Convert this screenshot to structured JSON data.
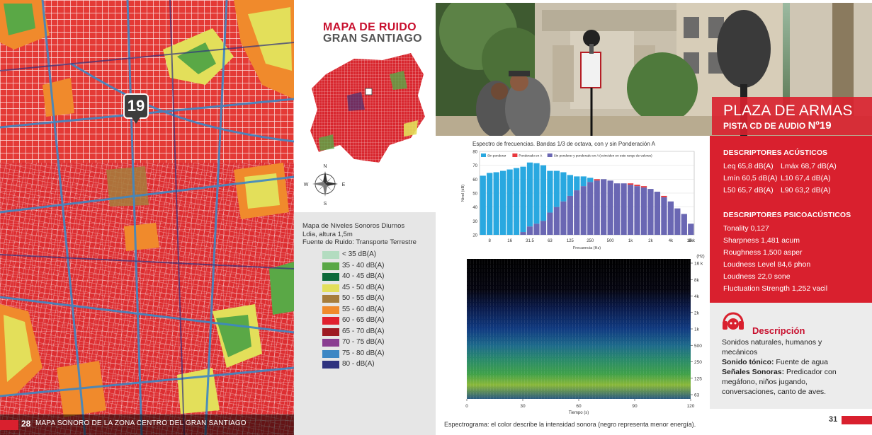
{
  "left_page": {
    "map_marker": "19",
    "page_number": "28",
    "footer_text": "MAPA SONORO DE LA ZONA CENTRO DEL GRAN SANTIAGO",
    "map_title_line1": "MAPA DE RUIDO",
    "map_title_line2": "GRAN SANTIAGO",
    "compass": {
      "n": "N",
      "s": "S",
      "e": "E",
      "w": "W"
    },
    "legend": {
      "title": "Mapa de Niveles Sonoros Diurnos",
      "line2": "Ldia, altura 1,5m",
      "line3": "Fuente de Ruido: Transporte Terrestre",
      "items": [
        {
          "label": "< 35  dB(A)",
          "color": "#b3dcc0"
        },
        {
          "label": "35  -  40  dB(A)",
          "color": "#5aa846"
        },
        {
          "label": "40  -  45  dB(A)",
          "color": "#0c6a3a"
        },
        {
          "label": "45  -  50  dB(A)",
          "color": "#e3df5a"
        },
        {
          "label": "50  -  55  dB(A)",
          "color": "#a67d3c"
        },
        {
          "label": "55  -  60  dB(A)",
          "color": "#f08a2c"
        },
        {
          "label": "60  -  65  dB(A)",
          "color": "#e0202e"
        },
        {
          "label": "65  -  70  dB(A)",
          "color": "#9e1a23"
        },
        {
          "label": "70  -  75  dB(A)",
          "color": "#8a3d91"
        },
        {
          "label": "75  -  80  dB(A)",
          "color": "#3d87c4"
        },
        {
          "label": "80  -        dB(A)",
          "color": "#2f327f"
        }
      ]
    }
  },
  "right_page": {
    "place_title": "PLAZA DE ARMAS",
    "track_label": "PISTA CD DE AUDIO ",
    "track_number": "Nº19",
    "chart_title": "Espectro de frecuencias. Bandas 1/3 de octava, con y sin Ponderación A",
    "descriptors_acoustic": {
      "heading": "DESCRIPTORES ACÚSTICOS",
      "rows": [
        [
          "Leq 65,8 dB(A)",
          "Lmáx 68,7 dB(A)"
        ],
        [
          "Lmín 60,5 dB(A)",
          "L10 67,4 dB(A)"
        ],
        [
          "L50 65,7 dB(A)",
          "L90 63,2 dB(A)"
        ]
      ]
    },
    "descriptors_psycho": {
      "heading": "DESCRIPTORES PSICOACÚSTICOS",
      "items": [
        "Tonality 0,127",
        "Sharpness 1,481 acum",
        "Roughness 1,500 asper",
        "Loudness Level 84,6 phon",
        "Loudness 22,0 sone",
        "Fluctuation Strength 1,252 vacil"
      ]
    },
    "description": {
      "title": "Descripción",
      "line1": "Sonidos naturales, humanos y",
      "line2": "mecánicos",
      "tonal_label": "Sonido tónico:",
      "tonal_value": " Fuente de agua",
      "signals_label": "Señales Sonoras:",
      "signals_value": " Predicador con",
      "signals_line2": "megáfono, niños jugando,",
      "signals_line3": "conversaciones, canto de aves."
    },
    "spectrogram_caption": "Espectrograma: el color describe la intensidad sonora (negro representa menor energía).",
    "page_number": "31"
  },
  "chart_data": [
    {
      "type": "bar",
      "title": "Espectro de frecuencias. Bandas 1/3 de octava, con y sin Ponderación A",
      "xlabel": "Frecuencia (Hz)",
      "ylabel": "Nivel (dB)",
      "ylim": [
        20,
        80
      ],
      "x_ticks": [
        "8",
        "16",
        "31.5",
        "63",
        "125",
        "250",
        "500",
        "1k",
        "2k",
        "4k",
        "8k",
        "16 k"
      ],
      "y_ticks": [
        "20",
        "30",
        "40",
        "50",
        "60",
        "70",
        "80"
      ],
      "legend": [
        "Sin ponderar",
        "Ponderado en A",
        "Sin ponderar y ponderado en A (coinciden en este rango de valores)"
      ],
      "legend_colors": [
        "#29a8e0",
        "#e8383d",
        "#6a67b3"
      ],
      "series": [
        {
          "name": "Sin ponderar",
          "values": [
            62.5,
            64.5,
            65,
            66,
            67,
            68,
            69,
            72,
            71.5,
            70,
            66,
            66,
            65,
            63,
            62,
            62,
            61,
            59,
            60,
            59,
            57,
            57,
            56,
            55,
            54,
            53,
            51,
            47,
            44,
            39,
            35,
            28
          ]
        },
        {
          "name": "Ponderado en A",
          "values": [
            20,
            20,
            20,
            20,
            20,
            20,
            22,
            26,
            28,
            30,
            36,
            40,
            44,
            48,
            52,
            55,
            58,
            60,
            60,
            59,
            57,
            57,
            57,
            56,
            55,
            53,
            51,
            48,
            44,
            39,
            35,
            28
          ]
        }
      ]
    },
    {
      "type": "heatmap",
      "title": "",
      "xlabel": "Tiempo (s)",
      "ylabel": "(Hz)",
      "x_ticks": [
        "0",
        "30",
        "60",
        "90",
        "120"
      ],
      "y_ticks": [
        "16 k",
        "8k",
        "4k",
        "2k",
        "1k",
        "500",
        "250",
        "125",
        "63"
      ]
    }
  ]
}
